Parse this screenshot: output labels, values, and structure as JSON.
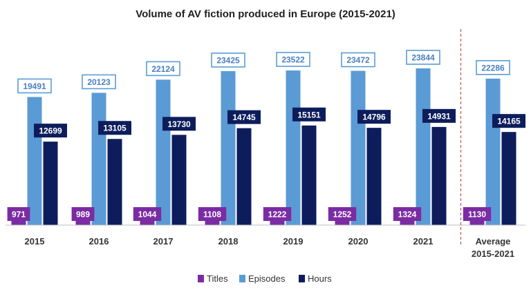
{
  "chart_data": {
    "type": "bar",
    "title": "Volume of AV fiction produced in Europe (2015-2021)",
    "categories": [
      [
        "2015"
      ],
      [
        "2016"
      ],
      [
        "2017"
      ],
      [
        "2018"
      ],
      [
        "2019"
      ],
      [
        "2020"
      ],
      [
        "2021"
      ],
      [
        "Average",
        "2015-2021"
      ]
    ],
    "series": [
      {
        "name": "Titles",
        "color": "#7b2ca3",
        "values": [
          971,
          989,
          1044,
          1108,
          1222,
          1252,
          1324,
          1130
        ]
      },
      {
        "name": "Episodes",
        "color": "#5b9bd5",
        "values": [
          19491,
          20123,
          22124,
          23425,
          23522,
          23472,
          23844,
          22286
        ]
      },
      {
        "name": "Hours",
        "color": "#0d1d5c",
        "values": [
          12699,
          13105,
          13730,
          14745,
          15151,
          14796,
          14931,
          14165
        ]
      }
    ],
    "ylim": [
      0,
      25000
    ],
    "grid": false,
    "legend_position": "bottom",
    "separator": "dashed line before Average"
  }
}
